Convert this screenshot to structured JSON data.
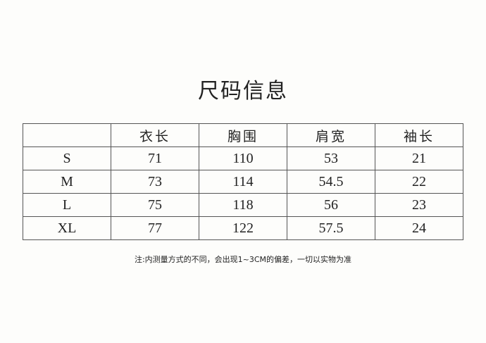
{
  "title": "尺码信息",
  "table": {
    "headers": [
      "",
      "衣长",
      "胸围",
      "肩宽",
      "袖长"
    ],
    "rows": [
      [
        "S",
        "71",
        "110",
        "53",
        "21"
      ],
      [
        "M",
        "73",
        "114",
        "54.5",
        "22"
      ],
      [
        "L",
        "75",
        "118",
        "56",
        "23"
      ],
      [
        "XL",
        "77",
        "122",
        "57.5",
        "24"
      ]
    ]
  },
  "note": "注:内测量方式的不同，会出现1~3CM的偏差，一切以实物为准"
}
